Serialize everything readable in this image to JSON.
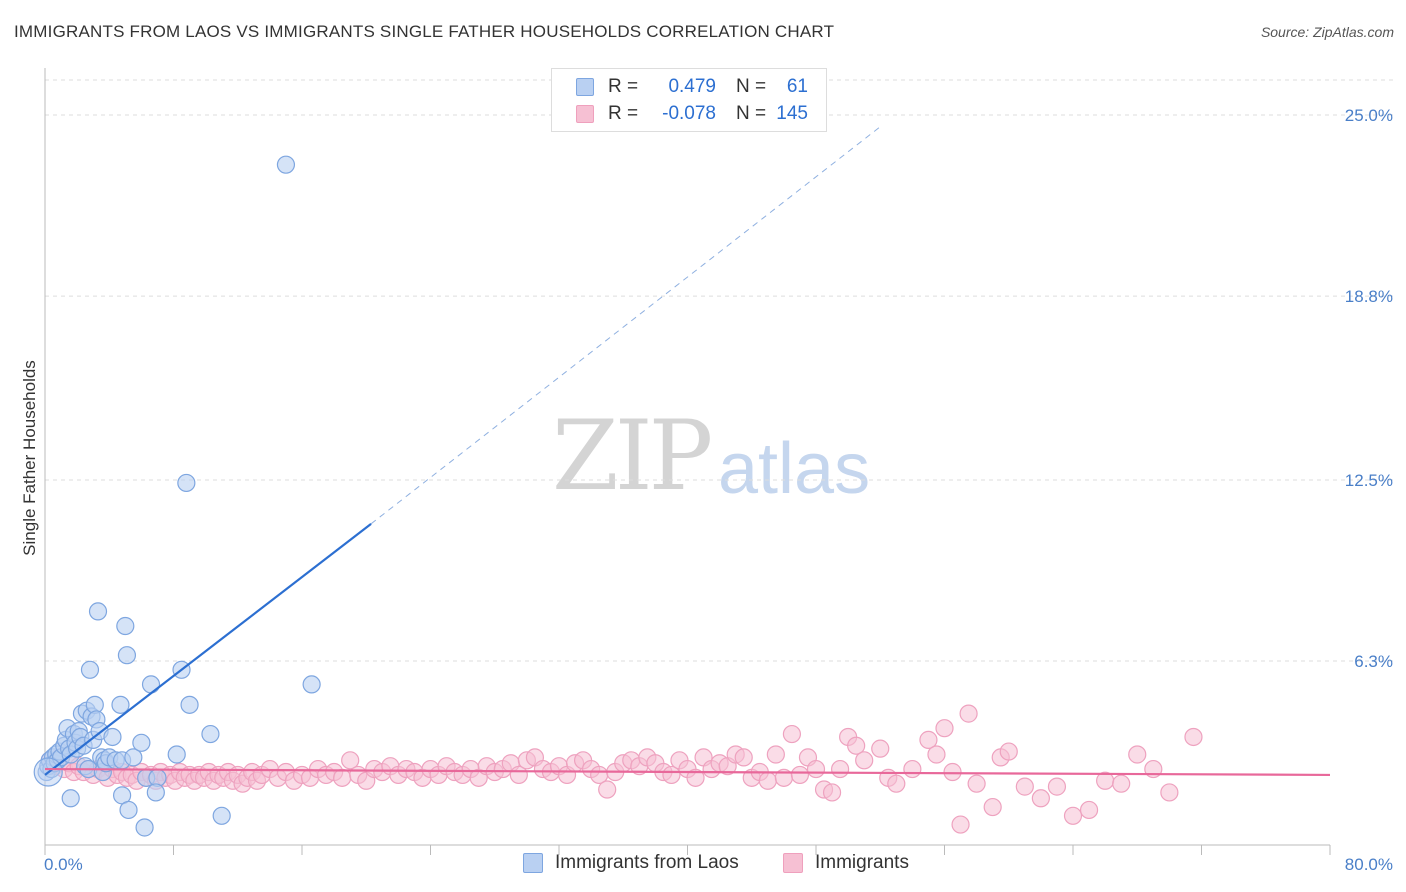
{
  "title": "IMMIGRANTS FROM LAOS VS IMMIGRANTS SINGLE FATHER HOUSEHOLDS CORRELATION CHART",
  "source": "Source: ZipAtlas.com",
  "watermark": {
    "zip": "ZIP",
    "atlas": "atlas"
  },
  "colors": {
    "blue": "#2c6fd1",
    "blue_fill": "#b9d0f2",
    "pink": "#e8689a",
    "pink_fill": "#f6c0d3",
    "grid": "#dddddd",
    "axis_text": "#4a7fc8"
  },
  "legend": {
    "rows": [
      {
        "r_label": "R =",
        "r_value": "0.479",
        "n_label": "N =",
        "n_value": "61"
      },
      {
        "r_label": "R =",
        "r_value": "-0.078",
        "n_label": "N =",
        "n_value": "145"
      }
    ]
  },
  "bottom_legend": [
    "Immigrants from Laos",
    "Immigrants"
  ],
  "chart_data": {
    "type": "scatter",
    "title": "IMMIGRANTS FROM LAOS VS IMMIGRANTS SINGLE FATHER HOUSEHOLDS CORRELATION CHART",
    "xlabel": "",
    "ylabel": "Single Father Households",
    "xlim": [
      0,
      80
    ],
    "ylim": [
      0,
      26.2
    ],
    "x_tick_labels": [
      "0.0%",
      "80.0%"
    ],
    "y_ticks": [
      6.3,
      12.5,
      18.8,
      25.0
    ],
    "y_tick_labels": [
      "6.3%",
      "12.5%",
      "18.8%",
      "25.0%"
    ],
    "series": [
      {
        "name": "Immigrants from Laos",
        "color": "#2c6fd1",
        "trend": {
          "x0": 0,
          "y0": 2.4,
          "x1": 20.3,
          "y1": 11.0,
          "dash_to_x": 52,
          "dash_to_y": 24.6
        },
        "points": [
          [
            0.1,
            2.5
          ],
          [
            0.2,
            2.7
          ],
          [
            0.3,
            2.9
          ],
          [
            0.4,
            2.6
          ],
          [
            0.5,
            3.0
          ],
          [
            0.6,
            2.8
          ],
          [
            0.7,
            3.1
          ],
          [
            0.8,
            2.9
          ],
          [
            0.9,
            3.2
          ],
          [
            1.0,
            3.0
          ],
          [
            1.2,
            3.4
          ],
          [
            1.3,
            3.6
          ],
          [
            1.4,
            4.0
          ],
          [
            1.5,
            3.3
          ],
          [
            1.6,
            3.1
          ],
          [
            1.8,
            3.8
          ],
          [
            1.9,
            3.5
          ],
          [
            2.0,
            3.3
          ],
          [
            2.1,
            3.9
          ],
          [
            2.2,
            3.7
          ],
          [
            2.3,
            4.5
          ],
          [
            2.4,
            3.4
          ],
          [
            2.5,
            2.7
          ],
          [
            2.6,
            4.6
          ],
          [
            2.7,
            2.6
          ],
          [
            2.9,
            4.4
          ],
          [
            3.0,
            3.6
          ],
          [
            3.1,
            4.8
          ],
          [
            3.2,
            4.3
          ],
          [
            3.4,
            3.9
          ],
          [
            3.5,
            3.0
          ],
          [
            3.6,
            2.5
          ],
          [
            3.7,
            2.9
          ],
          [
            3.8,
            2.8
          ],
          [
            4.0,
            3.0
          ],
          [
            4.2,
            3.7
          ],
          [
            4.4,
            2.9
          ],
          [
            4.7,
            4.8
          ],
          [
            4.8,
            2.9
          ],
          [
            5.0,
            7.5
          ],
          [
            5.5,
            3.0
          ],
          [
            6.0,
            3.5
          ],
          [
            6.3,
            2.3
          ],
          [
            6.6,
            5.5
          ],
          [
            7.0,
            2.3
          ],
          [
            8.2,
            3.1
          ],
          [
            8.5,
            6.0
          ],
          [
            8.8,
            12.4
          ],
          [
            9.0,
            4.8
          ],
          [
            10.3,
            3.8
          ],
          [
            11.0,
            1.0
          ],
          [
            15.0,
            23.3
          ],
          [
            16.6,
            5.5
          ],
          [
            3.3,
            8.0
          ],
          [
            5.1,
            6.5
          ],
          [
            2.8,
            6.0
          ],
          [
            1.6,
            1.6
          ],
          [
            4.8,
            1.7
          ],
          [
            5.2,
            1.2
          ],
          [
            6.2,
            0.6
          ],
          [
            6.9,
            1.8
          ]
        ]
      },
      {
        "name": "Immigrants",
        "color": "#e8689a",
        "trend": {
          "x0": 0,
          "y0": 2.6,
          "x1": 80,
          "y1": 2.4
        },
        "points": [
          [
            0.3,
            2.9
          ],
          [
            0.6,
            2.7
          ],
          [
            0.9,
            3.0
          ],
          [
            1.2,
            2.6
          ],
          [
            1.5,
            2.8
          ],
          [
            1.8,
            2.5
          ],
          [
            2.1,
            2.7
          ],
          [
            2.4,
            2.5
          ],
          [
            2.7,
            2.6
          ],
          [
            3.0,
            2.4
          ],
          [
            3.3,
            2.6
          ],
          [
            3.6,
            2.5
          ],
          [
            3.9,
            2.3
          ],
          [
            4.2,
            2.6
          ],
          [
            4.5,
            2.4
          ],
          [
            4.8,
            2.5
          ],
          [
            5.1,
            2.3
          ],
          [
            5.4,
            2.4
          ],
          [
            5.7,
            2.2
          ],
          [
            6.0,
            2.5
          ],
          [
            6.3,
            2.3
          ],
          [
            6.6,
            2.4
          ],
          [
            6.9,
            2.2
          ],
          [
            7.2,
            2.5
          ],
          [
            7.5,
            2.3
          ],
          [
            7.8,
            2.4
          ],
          [
            8.1,
            2.2
          ],
          [
            8.4,
            2.5
          ],
          [
            8.7,
            2.3
          ],
          [
            9.0,
            2.4
          ],
          [
            9.3,
            2.2
          ],
          [
            9.6,
            2.4
          ],
          [
            9.9,
            2.3
          ],
          [
            10.2,
            2.5
          ],
          [
            10.5,
            2.2
          ],
          [
            10.8,
            2.4
          ],
          [
            11.1,
            2.3
          ],
          [
            11.4,
            2.5
          ],
          [
            11.7,
            2.2
          ],
          [
            12.0,
            2.4
          ],
          [
            12.3,
            2.1
          ],
          [
            12.6,
            2.3
          ],
          [
            12.9,
            2.5
          ],
          [
            13.2,
            2.2
          ],
          [
            13.5,
            2.4
          ],
          [
            14.0,
            2.6
          ],
          [
            14.5,
            2.3
          ],
          [
            15.0,
            2.5
          ],
          [
            15.5,
            2.2
          ],
          [
            16.0,
            2.4
          ],
          [
            16.5,
            2.3
          ],
          [
            17.0,
            2.6
          ],
          [
            17.5,
            2.4
          ],
          [
            18.0,
            2.5
          ],
          [
            18.5,
            2.3
          ],
          [
            19.0,
            2.9
          ],
          [
            19.5,
            2.4
          ],
          [
            20.0,
            2.2
          ],
          [
            20.5,
            2.6
          ],
          [
            21.0,
            2.5
          ],
          [
            21.5,
            2.7
          ],
          [
            22.0,
            2.4
          ],
          [
            22.5,
            2.6
          ],
          [
            23.0,
            2.5
          ],
          [
            23.5,
            2.3
          ],
          [
            24.0,
            2.6
          ],
          [
            24.5,
            2.4
          ],
          [
            25.0,
            2.7
          ],
          [
            25.5,
            2.5
          ],
          [
            26.0,
            2.4
          ],
          [
            26.5,
            2.6
          ],
          [
            27.0,
            2.3
          ],
          [
            27.5,
            2.7
          ],
          [
            28.0,
            2.5
          ],
          [
            28.5,
            2.6
          ],
          [
            29.0,
            2.8
          ],
          [
            29.5,
            2.4
          ],
          [
            30.0,
            2.9
          ],
          [
            30.5,
            3.0
          ],
          [
            31.0,
            2.6
          ],
          [
            31.5,
            2.5
          ],
          [
            32.0,
            2.7
          ],
          [
            32.5,
            2.4
          ],
          [
            33.0,
            2.8
          ],
          [
            33.5,
            2.9
          ],
          [
            34.0,
            2.6
          ],
          [
            34.5,
            2.4
          ],
          [
            35.0,
            1.9
          ],
          [
            35.5,
            2.5
          ],
          [
            36.0,
            2.8
          ],
          [
            36.5,
            2.9
          ],
          [
            37.0,
            2.7
          ],
          [
            37.5,
            3.0
          ],
          [
            38.0,
            2.8
          ],
          [
            38.5,
            2.5
          ],
          [
            39.0,
            2.4
          ],
          [
            39.5,
            2.9
          ],
          [
            40.0,
            2.6
          ],
          [
            40.5,
            2.3
          ],
          [
            41.0,
            3.0
          ],
          [
            41.5,
            2.6
          ],
          [
            42.0,
            2.8
          ],
          [
            42.5,
            2.7
          ],
          [
            43.0,
            3.1
          ],
          [
            43.5,
            3.0
          ],
          [
            44.0,
            2.3
          ],
          [
            44.5,
            2.5
          ],
          [
            45.0,
            2.2
          ],
          [
            45.5,
            3.1
          ],
          [
            46.0,
            2.3
          ],
          [
            46.5,
            3.8
          ],
          [
            47.0,
            2.4
          ],
          [
            47.5,
            3.0
          ],
          [
            48.0,
            2.6
          ],
          [
            48.5,
            1.9
          ],
          [
            49.0,
            1.8
          ],
          [
            49.5,
            2.6
          ],
          [
            50.0,
            3.7
          ],
          [
            50.5,
            3.4
          ],
          [
            51.0,
            2.9
          ],
          [
            52.0,
            3.3
          ],
          [
            52.5,
            2.3
          ],
          [
            53.0,
            2.1
          ],
          [
            54.0,
            2.6
          ],
          [
            55.0,
            3.6
          ],
          [
            55.5,
            3.1
          ],
          [
            56.0,
            4.0
          ],
          [
            56.5,
            2.5
          ],
          [
            57.0,
            0.7
          ],
          [
            57.5,
            4.5
          ],
          [
            58.0,
            2.1
          ],
          [
            59.0,
            1.3
          ],
          [
            59.5,
            3.0
          ],
          [
            60.0,
            3.2
          ],
          [
            61.0,
            2.0
          ],
          [
            62.0,
            1.6
          ],
          [
            63.0,
            2.0
          ],
          [
            64.0,
            1.0
          ],
          [
            65.0,
            1.2
          ],
          [
            66.0,
            2.2
          ],
          [
            67.0,
            2.1
          ],
          [
            68.0,
            3.1
          ],
          [
            69.0,
            2.6
          ],
          [
            70.0,
            1.8
          ],
          [
            71.5,
            3.7
          ]
        ]
      }
    ]
  }
}
